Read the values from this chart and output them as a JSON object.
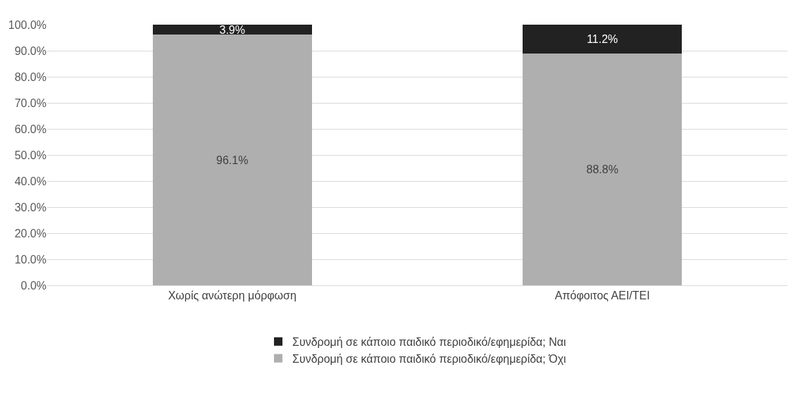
{
  "chart_data": {
    "type": "bar",
    "stacked": true,
    "categories": [
      "Χωρίς ανώτερη μόρφωση",
      "Απόφοιτος ΑΕΙ/ΤΕΙ"
    ],
    "series": [
      {
        "name": "Συνδρομή σε κάποιο παιδικό περιοδικό/εφημερίδα; Όχι",
        "color": "#afafaf",
        "values": [
          96.1,
          88.8
        ],
        "value_labels": [
          "96.1%",
          "88.8%"
        ]
      },
      {
        "name": "Συνδρομή σε κάποιο παιδικό περιοδικό/εφημερίδα; Ναι",
        "color": "#222222",
        "values": [
          3.9,
          11.2
        ],
        "value_labels": [
          "3.9%",
          "11.2%"
        ]
      }
    ],
    "ylim": [
      0,
      100
    ],
    "yticks": [
      {
        "value": 0,
        "label": "0.0%"
      },
      {
        "value": 10,
        "label": "10.0%"
      },
      {
        "value": 20,
        "label": "20.0%"
      },
      {
        "value": 30,
        "label": "30.0%"
      },
      {
        "value": 40,
        "label": "40.0%"
      },
      {
        "value": 50,
        "label": "50.0%"
      },
      {
        "value": 60,
        "label": "60.0%"
      },
      {
        "value": 70,
        "label": "70.0%"
      },
      {
        "value": 80,
        "label": "80.0%"
      },
      {
        "value": 90,
        "label": "90.0%"
      },
      {
        "value": 100,
        "label": "100.0%"
      }
    ],
    "grid": "y",
    "legend": "bottom"
  }
}
